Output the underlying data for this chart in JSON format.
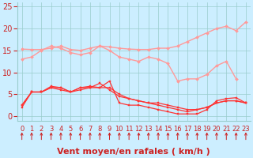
{
  "xlabel": "Vent moyen/en rafales ( km/h )",
  "x_values": [
    0,
    1,
    2,
    3,
    4,
    5,
    6,
    7,
    8,
    9,
    10,
    11,
    12,
    13,
    14,
    15,
    16,
    17,
    18,
    19,
    20,
    21,
    22,
    23
  ],
  "ylim": [
    -1,
    26
  ],
  "yticks": [
    0,
    5,
    10,
    15,
    20,
    25
  ],
  "background_color": "#cceeff",
  "grid_color": "#99cccc",
  "lines": [
    {
      "color": "#ff9999",
      "y": [
        15.3,
        15.2,
        15.2,
        15.5,
        16.0,
        15.2,
        15.0,
        15.5,
        16.0,
        15.8,
        15.5,
        15.3,
        15.2,
        15.2,
        15.5,
        15.5,
        16.0,
        17.0,
        18.0,
        19.0,
        20.0,
        20.5,
        19.5,
        21.5
      ],
      "marker": "D",
      "markersize": 2,
      "linewidth": 1.0
    },
    {
      "color": "#ff9999",
      "y": [
        13.0,
        13.5,
        15.0,
        16.0,
        15.5,
        14.5,
        14.0,
        14.5,
        16.0,
        15.0,
        13.5,
        13.0,
        12.5,
        13.5,
        13.0,
        12.0,
        8.0,
        8.5,
        8.5,
        9.5,
        11.5,
        12.5,
        8.5,
        null
      ],
      "marker": "D",
      "markersize": 2,
      "linewidth": 1.0
    },
    {
      "color": "#ff3333",
      "y": [
        2.0,
        5.5,
        5.5,
        6.8,
        6.5,
        5.5,
        6.5,
        6.8,
        6.5,
        8.0,
        3.0,
        2.5,
        2.5,
        2.0,
        1.5,
        1.0,
        0.5,
        0.5,
        0.5,
        1.5,
        3.5,
        4.0,
        4.2,
        3.0
      ],
      "marker": "s",
      "markersize": 2,
      "linewidth": 0.9
    },
    {
      "color": "#ff3333",
      "y": [
        2.5,
        5.5,
        5.5,
        6.5,
        6.5,
        5.5,
        6.5,
        6.5,
        6.5,
        6.5,
        5.0,
        4.0,
        3.5,
        3.0,
        3.0,
        2.5,
        2.0,
        1.5,
        1.5,
        2.0,
        3.0,
        3.5,
        3.5,
        3.0
      ],
      "marker": "s",
      "markersize": 2,
      "linewidth": 0.9
    },
    {
      "color": "#ff3333",
      "y": [
        2.5,
        5.5,
        5.5,
        6.5,
        6.0,
        5.5,
        6.0,
        6.5,
        7.5,
        6.0,
        4.5,
        4.0,
        3.5,
        3.0,
        2.5,
        2.0,
        1.5,
        1.0,
        1.5,
        2.0,
        3.0,
        3.5,
        3.5,
        3.0
      ],
      "marker": "s",
      "markersize": 2,
      "linewidth": 0.9
    }
  ],
  "arrow_color": "#cc2222",
  "tick_label_color": "#cc2222",
  "xlabel_color": "#cc2222",
  "xlabel_fontsize": 8,
  "tick_fontsize": 6,
  "ytick_fontsize": 7
}
